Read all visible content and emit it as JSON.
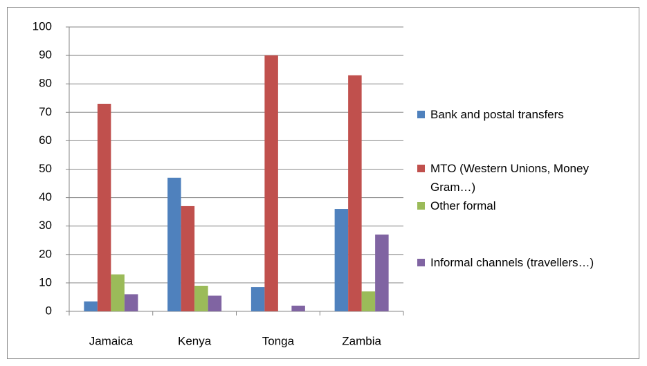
{
  "chart_data": {
    "type": "bar",
    "categories": [
      "Jamaica",
      "Kenya",
      "Tonga",
      "Zambia"
    ],
    "series": [
      {
        "name": "Bank and postal transfers",
        "color": "#4f81bd",
        "values": [
          3.5,
          47,
          8.5,
          36
        ]
      },
      {
        "name": "MTO (Western Unions, Money Gram…)",
        "color": "#c0504d",
        "values": [
          73,
          37,
          90,
          83
        ]
      },
      {
        "name": "Other formal",
        "color": "#9bbb59",
        "values": [
          13,
          9,
          0,
          7
        ]
      },
      {
        "name": "Informal channels (travellers…)",
        "color": "#8064a2",
        "values": [
          6,
          5.5,
          2,
          27
        ]
      }
    ],
    "ylim": [
      0,
      100
    ],
    "yticks": [
      0,
      10,
      20,
      30,
      40,
      50,
      60,
      70,
      80,
      90,
      100
    ],
    "grid": true,
    "legend": "right"
  }
}
